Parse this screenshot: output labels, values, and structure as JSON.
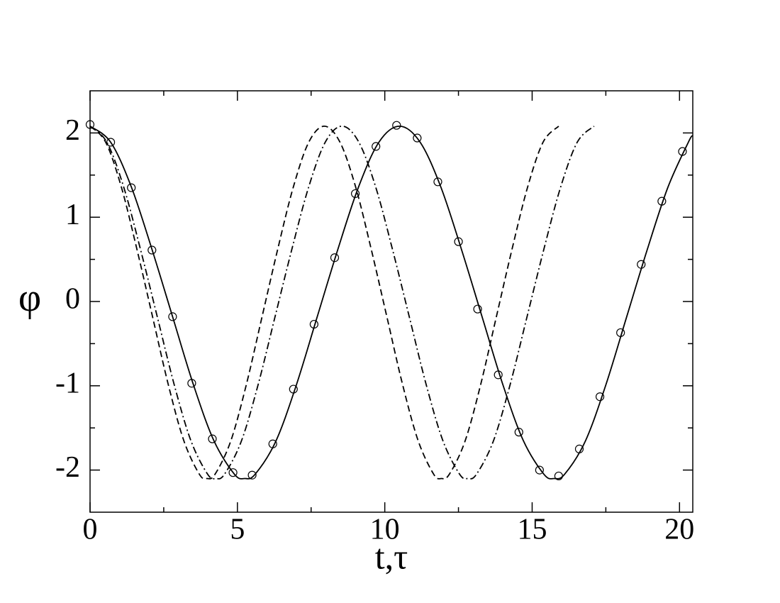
{
  "chart_data": {
    "type": "line",
    "xlabel": "t,τ",
    "ylabel": "φ",
    "xlim": [
      0,
      20.45
    ],
    "ylim": [
      -2.5,
      2.5
    ],
    "xticks": [
      0,
      5,
      10,
      15,
      20
    ],
    "yticks": [
      -2,
      -1,
      0,
      1,
      2
    ],
    "xminor": [
      2.5,
      7.5,
      12.5,
      17.5
    ],
    "yminor": [
      -1.5,
      -0.5,
      0.5,
      1.5
    ],
    "color": "#000000",
    "series": [
      {
        "style": "solid",
        "color": "#000000",
        "x": [
          0,
          0.7,
          1.4,
          2.1,
          2.8,
          3.5,
          4.2,
          4.9,
          5.25,
          5.6,
          6.3,
          7.0,
          7.7,
          8.4,
          9.1,
          9.8,
          10.5,
          11.2,
          11.9,
          12.6,
          13.3,
          14.0,
          14.7,
          15.4,
          15.75,
          16.1,
          16.8,
          17.5,
          18.2,
          18.9,
          19.6,
          20.3,
          20.45
        ],
        "values": [
          2.08,
          1.89,
          1.36,
          0.62,
          -0.18,
          -0.98,
          -1.65,
          -2.05,
          -2.1,
          -2.05,
          -1.66,
          -0.99,
          -0.19,
          0.61,
          1.35,
          1.89,
          2.08,
          1.89,
          1.36,
          0.62,
          -0.18,
          -0.98,
          -1.65,
          -2.05,
          -2.1,
          -2.05,
          -1.66,
          -0.99,
          -0.19,
          0.61,
          1.35,
          1.89,
          1.97
        ]
      },
      {
        "style": "dashed",
        "color": "#000000",
        "x": [
          0,
          0.53,
          1.06,
          1.59,
          2.12,
          2.65,
          3.18,
          3.71,
          3.975,
          4.24,
          4.77,
          5.3,
          5.83,
          6.36,
          6.89,
          7.42,
          7.95,
          8.48,
          9.01,
          9.54,
          10.07,
          10.6,
          11.13,
          11.66,
          11.925,
          12.19,
          12.72,
          13.25,
          13.78,
          14.31,
          14.84,
          15.37,
          15.9
        ],
        "values": [
          2.08,
          1.89,
          1.36,
          0.62,
          -0.18,
          -0.98,
          -1.65,
          -2.05,
          -2.1,
          -2.05,
          -1.66,
          -0.99,
          -0.19,
          0.61,
          1.35,
          1.89,
          2.08,
          1.89,
          1.36,
          0.62,
          -0.18,
          -0.98,
          -1.65,
          -2.05,
          -2.1,
          -2.05,
          -1.66,
          -0.99,
          -0.19,
          0.61,
          1.35,
          1.89,
          2.08
        ]
      },
      {
        "style": "dashdot",
        "color": "#000000",
        "x": [
          0,
          0.57,
          1.14,
          1.71,
          2.28,
          2.85,
          3.42,
          3.99,
          4.275,
          4.56,
          5.13,
          5.7,
          6.27,
          6.84,
          7.41,
          7.98,
          8.55,
          9.12,
          9.69,
          10.26,
          10.83,
          11.4,
          11.97,
          12.54,
          12.825,
          13.11,
          13.68,
          14.25,
          14.82,
          15.39,
          15.96,
          16.53,
          17.1
        ],
        "values": [
          2.08,
          1.89,
          1.36,
          0.62,
          -0.18,
          -0.98,
          -1.65,
          -2.05,
          -2.1,
          -2.05,
          -1.66,
          -0.99,
          -0.19,
          0.61,
          1.35,
          1.89,
          2.08,
          1.89,
          1.36,
          0.62,
          -0.18,
          -0.98,
          -1.65,
          -2.05,
          -2.1,
          -2.05,
          -1.66,
          -0.99,
          -0.19,
          0.61,
          1.35,
          1.89,
          2.08
        ]
      },
      {
        "style": "none",
        "marker": "circle",
        "color": "#000000",
        "x": [
          0,
          0.7,
          1.4,
          2.1,
          2.8,
          3.45,
          4.15,
          4.85,
          5.5,
          6.2,
          6.9,
          7.6,
          8.3,
          9.0,
          9.7,
          10.4,
          11.1,
          11.8,
          12.5,
          13.15,
          13.85,
          14.55,
          15.25,
          15.9,
          16.6,
          17.3,
          18.0,
          18.7,
          19.4,
          20.1
        ],
        "values": [
          2.1,
          1.89,
          1.35,
          0.61,
          -0.18,
          -0.97,
          -1.63,
          -2.03,
          -2.06,
          -1.69,
          -1.04,
          -0.27,
          0.52,
          1.28,
          1.84,
          2.09,
          1.94,
          1.42,
          0.71,
          -0.09,
          -0.87,
          -1.55,
          -2.0,
          -2.07,
          -1.75,
          -1.13,
          -0.37,
          0.44,
          1.19,
          1.78
        ]
      }
    ]
  }
}
